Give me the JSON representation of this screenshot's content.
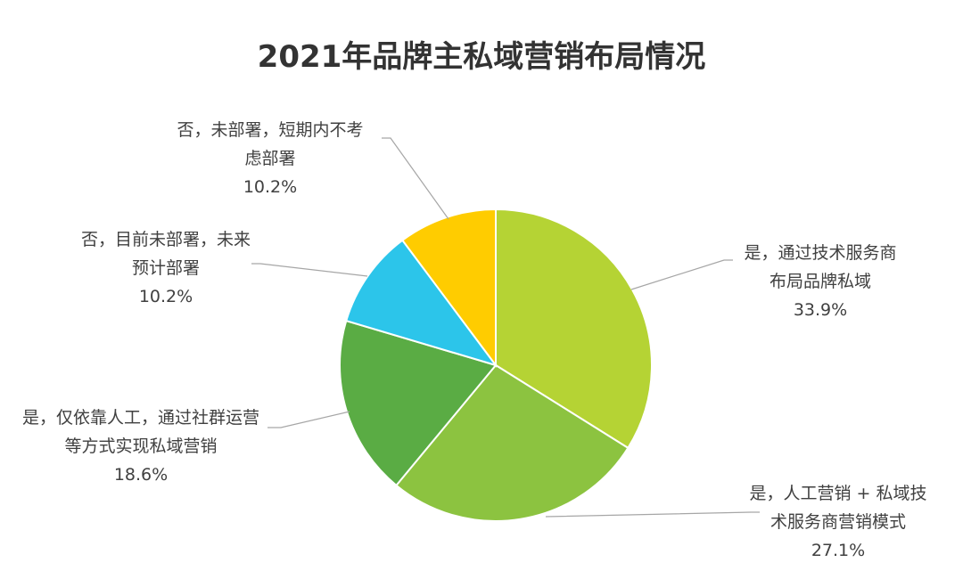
{
  "chart_data": {
    "type": "pie",
    "title": "2021年品牌主私域营销布局情况",
    "slices": [
      {
        "label_lines": [
          "是，通过技术服务商",
          "布局品牌私域"
        ],
        "value": 33.9,
        "value_label": "33.9%",
        "color": "#b5d334"
      },
      {
        "label_lines": [
          "是，人工营销 + 私域技",
          "术服务商营销模式"
        ],
        "value": 27.1,
        "value_label": "27.1%",
        "color": "#8cc340"
      },
      {
        "label_lines": [
          "是，仅依靠人工，通过社群运营",
          "等方式实现私域营销"
        ],
        "value": 18.6,
        "value_label": "18.6%",
        "color": "#5aac44"
      },
      {
        "label_lines": [
          "否，目前未部署，未来",
          "预计部署"
        ],
        "value": 10.2,
        "value_label": "10.2%",
        "color": "#2cc5ea"
      },
      {
        "label_lines": [
          "否，未部署，短期内不考",
          "虑部署"
        ],
        "value": 10.2,
        "value_label": "10.2%",
        "color": "#ffcc00"
      }
    ]
  }
}
